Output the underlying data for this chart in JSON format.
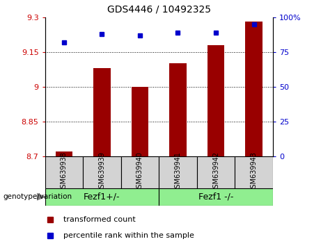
{
  "title": "GDS4446 / 10492325",
  "samples": [
    "GSM639938",
    "GSM639939",
    "GSM639940",
    "GSM639941",
    "GSM639942",
    "GSM639943"
  ],
  "bar_values": [
    8.72,
    9.08,
    9.0,
    9.1,
    9.18,
    9.28
  ],
  "percentile_values": [
    82,
    88,
    87,
    89,
    89,
    95
  ],
  "ylim_left": [
    8.7,
    9.3
  ],
  "ylim_right": [
    0,
    100
  ],
  "yticks_left": [
    8.7,
    8.85,
    9.0,
    9.15,
    9.3
  ],
  "yticks_right": [
    0,
    25,
    50,
    75,
    100
  ],
  "ytick_labels_left": [
    "8.7",
    "8.85",
    "9",
    "9.15",
    "9.3"
  ],
  "ytick_labels_right": [
    "0",
    "25",
    "50",
    "75",
    "100%"
  ],
  "bar_color": "#990000",
  "percentile_color": "#0000cc",
  "bar_base": 8.7,
  "group_labels": [
    "Fezf1+/-",
    "Fezf1 -/-"
  ],
  "group_color": "#90ee90",
  "genotype_label": "genotype/variation",
  "legend_items": [
    {
      "label": "transformed count",
      "color": "#990000"
    },
    {
      "label": "percentile rank within the sample",
      "color": "#0000cc"
    }
  ],
  "dotted_gridlines": [
    8.85,
    9.0,
    9.15
  ],
  "plot_bg": "white",
  "label_bg": "#d3d3d3",
  "title_fontsize": 10,
  "tick_fontsize": 8,
  "label_fontsize": 7,
  "group_fontsize": 9,
  "legend_fontsize": 8
}
